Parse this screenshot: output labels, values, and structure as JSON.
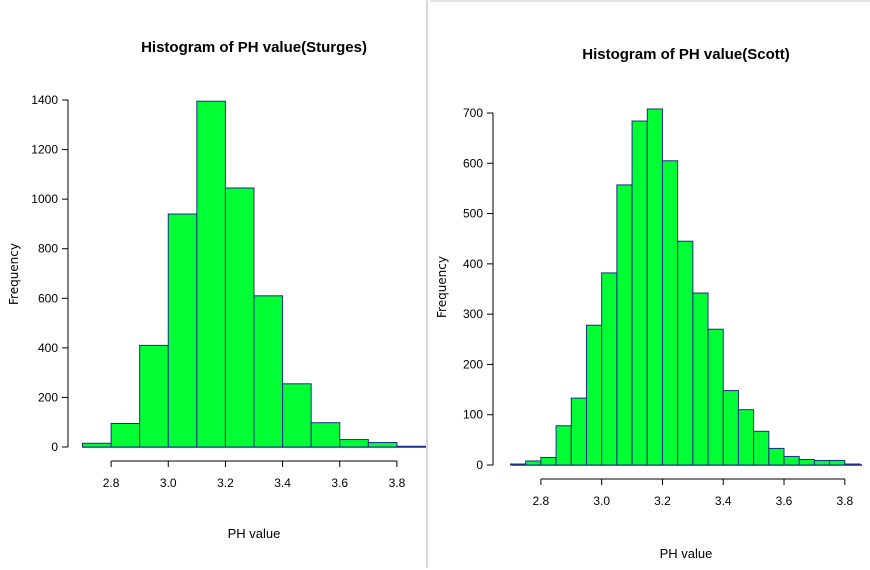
{
  "chart_data": [
    {
      "type": "bar",
      "title": "Histogram of PH value(Sturges)",
      "xlabel": "PH value",
      "ylabel": "Frequency",
      "xlim": [
        2.7,
        3.9
      ],
      "ylim": [
        0,
        1400
      ],
      "xticks": [
        "2.8",
        "3.0",
        "3.2",
        "3.4",
        "3.6",
        "3.8"
      ],
      "yticks": [
        "0",
        "200",
        "400",
        "600",
        "800",
        "1000",
        "1200",
        "1400"
      ],
      "bin_width": 0.1,
      "bins": [
        {
          "x0": 2.7,
          "x1": 2.8,
          "count": 15
        },
        {
          "x0": 2.8,
          "x1": 2.9,
          "count": 95
        },
        {
          "x0": 2.9,
          "x1": 3.0,
          "count": 410
        },
        {
          "x0": 3.0,
          "x1": 3.1,
          "count": 940
        },
        {
          "x0": 3.1,
          "x1": 3.2,
          "count": 1395
        },
        {
          "x0": 3.2,
          "x1": 3.3,
          "count": 1045
        },
        {
          "x0": 3.3,
          "x1": 3.4,
          "count": 610
        },
        {
          "x0": 3.4,
          "x1": 3.5,
          "count": 255
        },
        {
          "x0": 3.5,
          "x1": 3.6,
          "count": 98
        },
        {
          "x0": 3.6,
          "x1": 3.7,
          "count": 30
        },
        {
          "x0": 3.7,
          "x1": 3.8,
          "count": 18
        },
        {
          "x0": 3.8,
          "x1": 3.9,
          "count": 3
        }
      ],
      "bar_color": "#00ff33",
      "edge_color": "#1b2b8a"
    },
    {
      "type": "bar",
      "title": "Histogram of PH value(Scott)",
      "xlabel": "PH value",
      "ylabel": "Frequency",
      "xlim": [
        2.7,
        3.85
      ],
      "ylim": [
        0,
        700
      ],
      "xticks": [
        "2.8",
        "3.0",
        "3.2",
        "3.4",
        "3.6",
        "3.8"
      ],
      "yticks": [
        "0",
        "100",
        "200",
        "300",
        "400",
        "500",
        "600",
        "700"
      ],
      "bin_width": 0.05,
      "bins": [
        {
          "x0": 2.7,
          "x1": 2.75,
          "count": 2
        },
        {
          "x0": 2.75,
          "x1": 2.8,
          "count": 8
        },
        {
          "x0": 2.8,
          "x1": 2.85,
          "count": 15
        },
        {
          "x0": 2.85,
          "x1": 2.9,
          "count": 78
        },
        {
          "x0": 2.9,
          "x1": 2.95,
          "count": 133
        },
        {
          "x0": 2.95,
          "x1": 3.0,
          "count": 278
        },
        {
          "x0": 3.0,
          "x1": 3.05,
          "count": 382
        },
        {
          "x0": 3.05,
          "x1": 3.1,
          "count": 557
        },
        {
          "x0": 3.1,
          "x1": 3.15,
          "count": 684
        },
        {
          "x0": 3.15,
          "x1": 3.2,
          "count": 708
        },
        {
          "x0": 3.2,
          "x1": 3.25,
          "count": 605
        },
        {
          "x0": 3.25,
          "x1": 3.3,
          "count": 445
        },
        {
          "x0": 3.3,
          "x1": 3.35,
          "count": 342
        },
        {
          "x0": 3.35,
          "x1": 3.4,
          "count": 270
        },
        {
          "x0": 3.4,
          "x1": 3.45,
          "count": 148
        },
        {
          "x0": 3.45,
          "x1": 3.5,
          "count": 110
        },
        {
          "x0": 3.5,
          "x1": 3.55,
          "count": 67
        },
        {
          "x0": 3.55,
          "x1": 3.6,
          "count": 33
        },
        {
          "x0": 3.6,
          "x1": 3.65,
          "count": 17
        },
        {
          "x0": 3.65,
          "x1": 3.7,
          "count": 11
        },
        {
          "x0": 3.7,
          "x1": 3.75,
          "count": 9
        },
        {
          "x0": 3.75,
          "x1": 3.8,
          "count": 9
        },
        {
          "x0": 3.8,
          "x1": 3.85,
          "count": 2
        }
      ],
      "bar_color": "#00ff33",
      "edge_color": "#1b2b8a"
    }
  ]
}
